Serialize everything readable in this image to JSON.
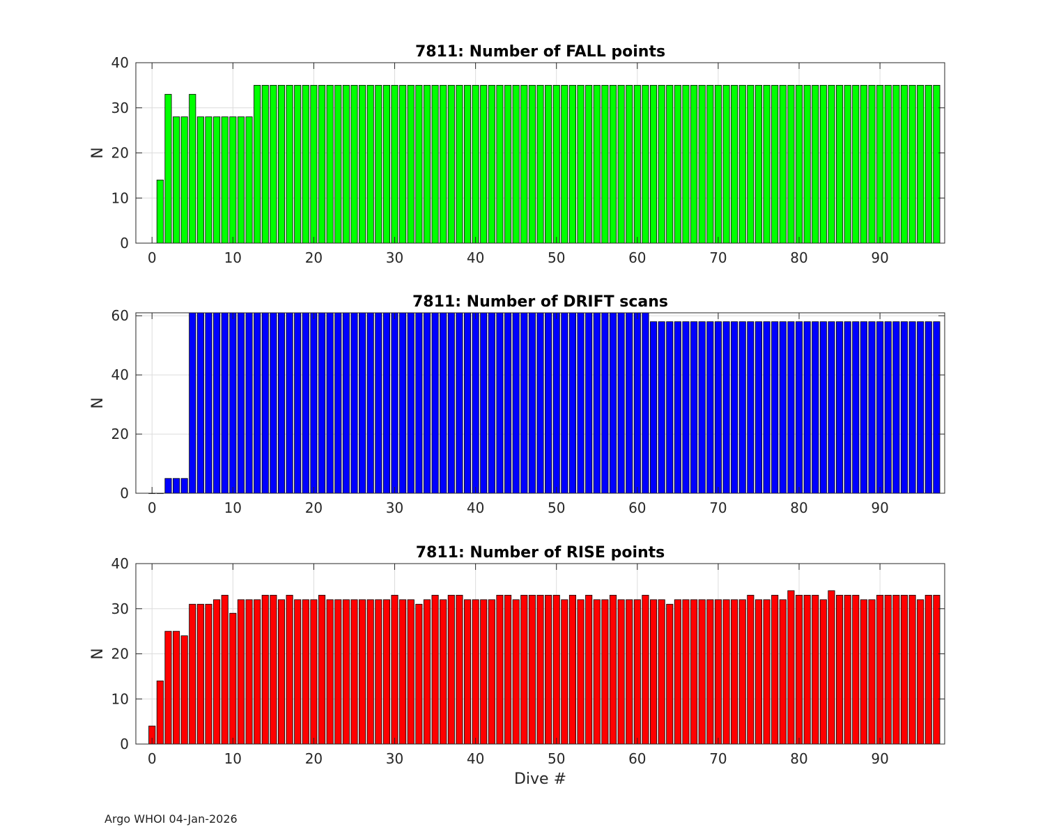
{
  "footer": "Argo WHOI 04-Jan-2026",
  "chart_data": [
    {
      "type": "bar",
      "title": "7811: Number of FALL points",
      "xlabel": "",
      "ylabel": "N",
      "xlim": [
        -2,
        98
      ],
      "ylim": [
        0,
        40
      ],
      "xticks": [
        0,
        10,
        20,
        30,
        40,
        50,
        60,
        70,
        80,
        90
      ],
      "yticks": [
        0,
        10,
        20,
        30,
        40
      ],
      "grid": true,
      "bar_color": "#00ff00",
      "x": [
        1,
        2,
        3,
        4,
        5,
        6,
        7,
        8,
        9,
        10,
        11,
        12,
        13,
        14,
        15,
        16,
        17,
        18,
        19,
        20,
        21,
        22,
        23,
        24,
        25,
        26,
        27,
        28,
        29,
        30,
        31,
        32,
        33,
        34,
        35,
        36,
        37,
        38,
        39,
        40,
        41,
        42,
        43,
        44,
        45,
        46,
        47,
        48,
        49,
        50,
        51,
        52,
        53,
        54,
        55,
        56,
        57,
        58,
        59,
        60,
        61,
        62,
        63,
        64,
        65,
        66,
        67,
        68,
        69,
        70,
        71,
        72,
        73,
        74,
        75,
        76,
        77,
        78,
        79,
        80,
        81,
        82,
        83,
        84,
        85,
        86,
        87,
        88,
        89,
        90,
        91,
        92,
        93,
        94,
        95,
        96,
        97
      ],
      "values": [
        14,
        33,
        28,
        28,
        33,
        28,
        28,
        28,
        28,
        28,
        28,
        28,
        35,
        35,
        35,
        35,
        35,
        35,
        35,
        35,
        35,
        35,
        35,
        35,
        35,
        35,
        35,
        35,
        35,
        35,
        35,
        35,
        35,
        35,
        35,
        35,
        35,
        35,
        35,
        35,
        35,
        35,
        35,
        35,
        35,
        35,
        35,
        35,
        35,
        35,
        35,
        35,
        35,
        35,
        35,
        35,
        35,
        35,
        35,
        35,
        35,
        35,
        35,
        35,
        35,
        35,
        35,
        35,
        35,
        35,
        35,
        35,
        35,
        35,
        35,
        35,
        35,
        35,
        35,
        35,
        35,
        35,
        35,
        35,
        35,
        35,
        35,
        35,
        35,
        35,
        35,
        35,
        35,
        35,
        35,
        35,
        35
      ]
    },
    {
      "type": "bar",
      "title": "7811: Number of DRIFT scans",
      "xlabel": "",
      "ylabel": "N",
      "xlim": [
        -2,
        98
      ],
      "ylim": [
        0,
        61
      ],
      "xticks": [
        0,
        10,
        20,
        30,
        40,
        50,
        60,
        70,
        80,
        90
      ],
      "yticks": [
        0,
        20,
        40,
        60
      ],
      "grid": true,
      "bar_color": "#0000ff",
      "x": [
        0,
        1,
        2,
        3,
        4,
        5,
        6,
        7,
        8,
        9,
        10,
        11,
        12,
        13,
        14,
        15,
        16,
        17,
        18,
        19,
        20,
        21,
        22,
        23,
        24,
        25,
        26,
        27,
        28,
        29,
        30,
        31,
        32,
        33,
        34,
        35,
        36,
        37,
        38,
        39,
        40,
        41,
        42,
        43,
        44,
        45,
        46,
        47,
        48,
        49,
        50,
        51,
        52,
        53,
        54,
        55,
        56,
        57,
        58,
        59,
        60,
        61,
        62,
        63,
        64,
        65,
        66,
        67,
        68,
        69,
        70,
        71,
        72,
        73,
        74,
        75,
        76,
        77,
        78,
        79,
        80,
        81,
        82,
        83,
        84,
        85,
        86,
        87,
        88,
        89,
        90,
        91,
        92,
        93,
        94,
        95,
        96,
        97
      ],
      "values": [
        0,
        0,
        5,
        5,
        5,
        61,
        61,
        61,
        61,
        61,
        61,
        61,
        61,
        61,
        61,
        61,
        61,
        61,
        61,
        61,
        61,
        61,
        61,
        61,
        61,
        61,
        61,
        61,
        61,
        61,
        61,
        61,
        61,
        61,
        61,
        61,
        61,
        61,
        61,
        61,
        61,
        61,
        61,
        61,
        61,
        61,
        61,
        61,
        61,
        61,
        61,
        61,
        61,
        61,
        61,
        61,
        61,
        61,
        61,
        61,
        61,
        61,
        58,
        58,
        58,
        58,
        58,
        58,
        58,
        58,
        58,
        58,
        58,
        58,
        58,
        58,
        58,
        58,
        58,
        58,
        58,
        58,
        58,
        58,
        58,
        58,
        58,
        58,
        58,
        58,
        58,
        58,
        58,
        58,
        58,
        58,
        58,
        58
      ]
    },
    {
      "type": "bar",
      "title": "7811: Number of RISE points",
      "xlabel": "Dive #",
      "ylabel": "N",
      "xlim": [
        -2,
        98
      ],
      "ylim": [
        0,
        40
      ],
      "xticks": [
        0,
        10,
        20,
        30,
        40,
        50,
        60,
        70,
        80,
        90
      ],
      "yticks": [
        0,
        10,
        20,
        30,
        40
      ],
      "grid": true,
      "bar_color": "#ff0000",
      "x": [
        0,
        1,
        2,
        3,
        4,
        5,
        6,
        7,
        8,
        9,
        10,
        11,
        12,
        13,
        14,
        15,
        16,
        17,
        18,
        19,
        20,
        21,
        22,
        23,
        24,
        25,
        26,
        27,
        28,
        29,
        30,
        31,
        32,
        33,
        34,
        35,
        36,
        37,
        38,
        39,
        40,
        41,
        42,
        43,
        44,
        45,
        46,
        47,
        48,
        49,
        50,
        51,
        52,
        53,
        54,
        55,
        56,
        57,
        58,
        59,
        60,
        61,
        62,
        63,
        64,
        65,
        66,
        67,
        68,
        69,
        70,
        71,
        72,
        73,
        74,
        75,
        76,
        77,
        78,
        79,
        80,
        81,
        82,
        83,
        84,
        85,
        86,
        87,
        88,
        89,
        90,
        91,
        92,
        93,
        94,
        95,
        96,
        97
      ],
      "values": [
        4,
        14,
        25,
        25,
        24,
        31,
        31,
        31,
        32,
        33,
        29,
        32,
        32,
        32,
        33,
        33,
        32,
        33,
        32,
        32,
        32,
        33,
        32,
        32,
        32,
        32,
        32,
        32,
        32,
        32,
        33,
        32,
        32,
        31,
        32,
        33,
        32,
        33,
        33,
        32,
        32,
        32,
        32,
        33,
        33,
        32,
        33,
        33,
        33,
        33,
        33,
        32,
        33,
        32,
        33,
        32,
        32,
        33,
        32,
        32,
        32,
        33,
        32,
        32,
        31,
        32,
        32,
        32,
        32,
        32,
        32,
        32,
        32,
        32,
        33,
        32,
        32,
        33,
        32,
        34,
        33,
        33,
        33,
        32,
        34,
        33,
        33,
        33,
        32,
        32,
        33,
        33,
        33,
        33,
        33,
        32,
        33,
        33
      ]
    }
  ]
}
